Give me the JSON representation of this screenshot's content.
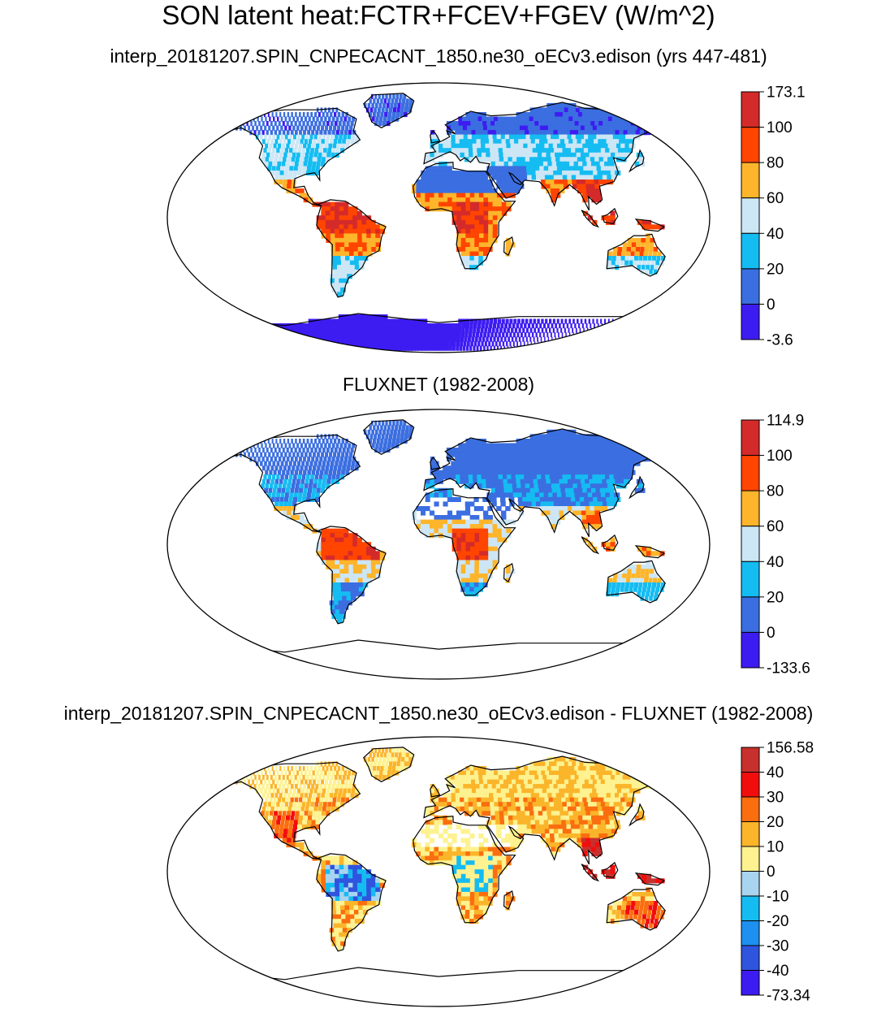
{
  "title": "SON latent heat:FCTR+FCEV+FGEV (W/m^2)",
  "panels": [
    {
      "subtitle": "interp_20181207.SPIN_CNPECACNT_1850.ne30_oECv3.edison (yrs 447-481)",
      "colorbar": {
        "labels": [
          "173.1",
          "100",
          "80",
          "60",
          "40",
          "20",
          "0",
          "-3.6"
        ],
        "colors": [
          "#d42a2a",
          "#ff4500",
          "#fdb52b",
          "#cce6f5",
          "#15bcf2",
          "#3b6ee0",
          "#3d1cf2"
        ]
      }
    },
    {
      "subtitle": "FLUXNET (1982-2008)",
      "colorbar": {
        "labels": [
          "114.9",
          "100",
          "80",
          "60",
          "40",
          "20",
          "0",
          "-133.6"
        ],
        "colors": [
          "#d42a2a",
          "#ff4500",
          "#fdb52b",
          "#cce6f5",
          "#15bcf2",
          "#3b6ee0",
          "#3d1cf2"
        ]
      }
    },
    {
      "subtitle": "interp_20181207.SPIN_CNPECACNT_1850.ne30_oECv3.edison - FLUXNET (1982-2008)",
      "colorbar": {
        "labels": [
          "156.58",
          "40",
          "30",
          "20",
          "10",
          "0",
          "-10",
          "-20",
          "-30",
          "-40",
          "-73.34"
        ],
        "colors": [
          "#c7302d",
          "#f20d0d",
          "#fa6e0f",
          "#fbb52b",
          "#fdf28f",
          "#a9d4f0",
          "#15bcf2",
          "#1e90f0",
          "#2f54de",
          "#3d1cf2"
        ]
      }
    }
  ]
}
